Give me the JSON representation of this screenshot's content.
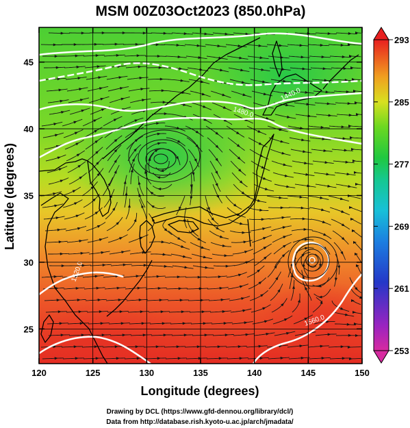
{
  "title": "MSM 00Z03Oct2023 (850.0hPa)",
  "xlabel": "Longitude (degrees)",
  "ylabel": "Latitude  (degrees)",
  "credits": [
    "Drawing by DCL (https://www.gfd-dennou.org/library/dcl/)",
    "Data from http://database.rish.kyoto-u.ac.jp/arch/jmadata/"
  ],
  "map": {
    "lon_range": [
      120,
      150
    ],
    "lat_range": [
      22.4,
      47.6
    ],
    "lon_ticks": [
      "120",
      "125",
      "130",
      "135",
      "140",
      "145",
      "150"
    ],
    "lat_ticks": [
      "25",
      "30",
      "35",
      "40",
      "45"
    ],
    "grid": true,
    "fields": [
      "temperature (color shading)",
      "geopotential height (white contours)",
      "wind (streamlines)"
    ]
  },
  "colorbar": {
    "ticks": [
      "293",
      "285",
      "277",
      "269",
      "261",
      "253"
    ],
    "range": [
      253,
      293
    ],
    "colors": [
      "#d72aa0",
      "#7d20d0",
      "#2040d0",
      "#1ea0e0",
      "#14c8a0",
      "#20c840",
      "#60d820",
      "#c8e020",
      "#f0c020",
      "#f08020",
      "#e82020"
    ]
  },
  "contours": {
    "color": "#ffffff",
    "labels": [
      "1440.0",
      "1480.0",
      "1520.0",
      "1560.0"
    ]
  },
  "features": {
    "low_center": "cyclonic vortex near 131E 38.5N",
    "typhoon_center": "cyclonic vortex near 145.5E 30.8N"
  }
}
